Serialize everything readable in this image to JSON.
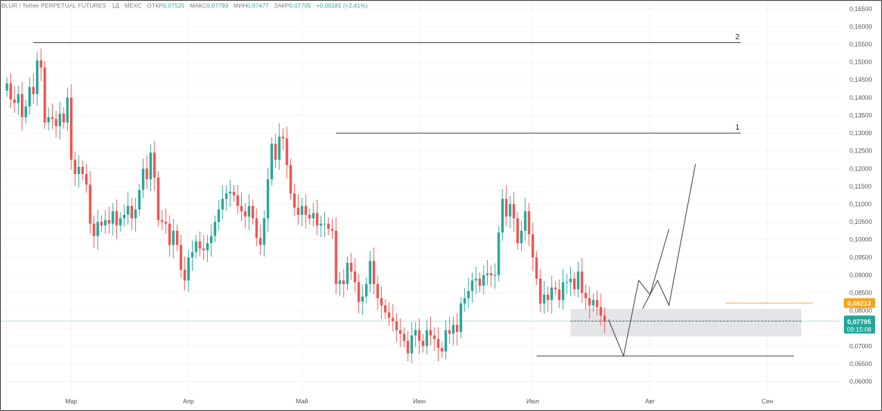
{
  "header": {
    "symbol": "BLUR / Tether PERPETUAL FUTURES · 1Д · MEXC",
    "open_label": "ОТКР",
    "open": "0,07525",
    "high_label": "МАКС",
    "high": "0,07793",
    "low_label": "МИН",
    "low": "0,07477",
    "close_label": "ЗАКР",
    "close": "0,07705",
    "change": "+0,00181 (+2,41%)"
  },
  "colors": {
    "up": "#26a69a",
    "down": "#ef5350",
    "grid": "#f2f3f5",
    "price_line": "#b2dfdb",
    "alert": "#f7a21b",
    "zone": "#e4e5e8",
    "drawing": "#444444"
  },
  "annotations": {
    "level_1": "1",
    "level_2": "2"
  },
  "price_labels": {
    "alert": "0,08213",
    "last": "0,07705",
    "countdown": "09:15:08"
  },
  "chart_data": {
    "type": "candlestick",
    "y_axis_ticks": [
      "0,16500",
      "0,16000",
      "0,15500",
      "0,15000",
      "0,14500",
      "0,14000",
      "0,13500",
      "0,13000",
      "0,12500",
      "0,12000",
      "0,11500",
      "0,11000",
      "0,10500",
      "0,10000",
      "0,09500",
      "0,09000",
      "0,08500",
      "0,08000",
      "0,07500",
      "0,07000",
      "0,06500",
      "0,06000"
    ],
    "y_axis_values": [
      0.165,
      0.16,
      0.155,
      0.15,
      0.145,
      0.14,
      0.135,
      0.13,
      0.125,
      0.12,
      0.115,
      0.11,
      0.105,
      0.1,
      0.095,
      0.09,
      0.085,
      0.08,
      0.075,
      0.07,
      0.065,
      0.06
    ],
    "ylim": [
      0.057,
      0.1675
    ],
    "x_axis_labels": [
      "Мар",
      "Апр",
      "Май",
      "Июн",
      "Июл",
      "Авг",
      "Сен"
    ],
    "x_axis_label_index": [
      17,
      48,
      78,
      109,
      139,
      170,
      201
    ],
    "closes": [
      0.144,
      0.1395,
      0.1385,
      0.141,
      0.1345,
      0.1375,
      0.143,
      0.141,
      0.1505,
      0.1485,
      0.133,
      0.1345,
      0.134,
      0.132,
      0.1355,
      0.133,
      0.14,
      0.1225,
      0.1185,
      0.1205,
      0.1185,
      0.1155,
      0.1045,
      0.101,
      0.105,
      0.104,
      0.1055,
      0.1045,
      0.108,
      0.104,
      0.106,
      0.107,
      0.1095,
      0.106,
      0.1085,
      0.114,
      0.12,
      0.117,
      0.1245,
      0.1175,
      0.1055,
      0.105,
      0.1045,
      0.0985,
      0.1025,
      0.0985,
      0.0915,
      0.0885,
      0.095,
      0.0965,
      0.0995,
      0.0975,
      0.097,
      0.099,
      0.101,
      0.105,
      0.1085,
      0.1115,
      0.113,
      0.1135,
      0.1125,
      0.1095,
      0.108,
      0.1065,
      0.1095,
      0.106,
      0.1005,
      0.0985,
      0.106,
      0.117,
      0.127,
      0.1225,
      0.129,
      0.1285,
      0.121,
      0.113,
      0.109,
      0.107,
      0.1095,
      0.107,
      0.106,
      0.1075,
      0.104,
      0.1045,
      0.1045,
      0.103,
      0.1025,
      0.0875,
      0.0885,
      0.0875,
      0.0935,
      0.091,
      0.088,
      0.0825,
      0.084,
      0.0875,
      0.094,
      0.0875,
      0.0835,
      0.0815,
      0.0795,
      0.078,
      0.077,
      0.0745,
      0.0735,
      0.0715,
      0.068,
      0.073,
      0.0745,
      0.0715,
      0.07,
      0.0745,
      0.073,
      0.072,
      0.0695,
      0.0685,
      0.0745,
      0.0735,
      0.076,
      0.074,
      0.082,
      0.0835,
      0.0855,
      0.0885,
      0.089,
      0.087,
      0.09,
      0.0905,
      0.09,
      0.09,
      0.102,
      0.1115,
      0.1065,
      0.11,
      0.106,
      0.099,
      0.1025,
      0.108,
      0.1015,
      0.095,
      0.089,
      0.082,
      0.0845,
      0.083,
      0.0865,
      0.086,
      0.083,
      0.088,
      0.088,
      0.089,
      0.086,
      0.091,
      0.085,
      0.0835,
      0.0815,
      0.083,
      0.081,
      0.0786,
      0.077
    ],
    "volatility_note": null,
    "horizontal_lines": [
      {
        "label": "2",
        "price": 0.1555
      },
      {
        "label": "1",
        "price": 0.13
      },
      {
        "label": "",
        "price": 0.0672
      }
    ],
    "alert_price": 0.08213,
    "last_price": 0.07705,
    "zone": {
      "top": 0.0805,
      "bottom": 0.0727
    },
    "projection": [
      [
        159,
        0.0775
      ],
      [
        163,
        0.0672
      ],
      [
        167,
        0.0885
      ],
      [
        170,
        0.0845
      ],
      [
        175,
        0.103
      ]
    ],
    "projection_2": [
      [
        168,
        0.0805
      ],
      [
        172,
        0.0885
      ],
      [
        175,
        0.0815
      ],
      [
        182,
        0.1213
      ]
    ]
  }
}
